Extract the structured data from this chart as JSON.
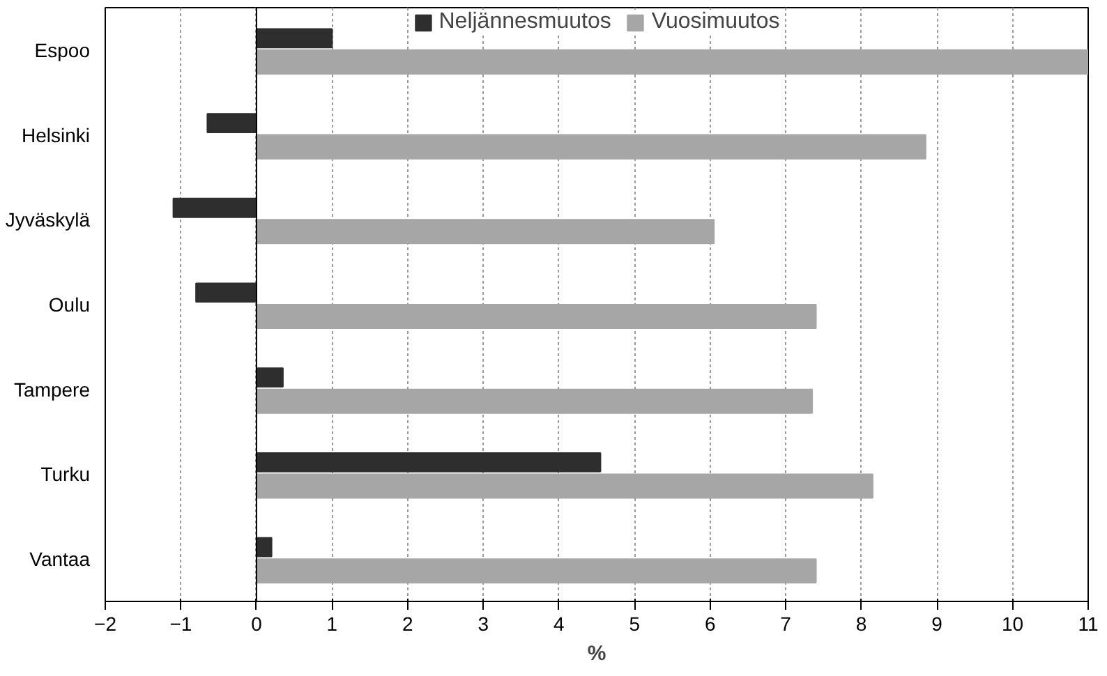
{
  "chart_data": {
    "type": "bar",
    "orientation": "horizontal",
    "xlabel": "%",
    "categories": [
      "Espoo",
      "Helsinki",
      "Jyväskylä",
      "Oulu",
      "Tampere",
      "Turku",
      "Vantaa"
    ],
    "series": [
      {
        "name": "Neljännesmuutos",
        "color": "#2e2e2e",
        "values": [
          1.0,
          -0.65,
          -1.1,
          -0.8,
          0.35,
          4.55,
          0.2
        ]
      },
      {
        "name": "Vuosimuutos",
        "color": "#a6a6a6",
        "values": [
          11.0,
          8.85,
          6.05,
          7.4,
          7.35,
          8.15,
          7.4
        ]
      }
    ],
    "xlim": [
      -2,
      11
    ],
    "xticks": [
      -2,
      -1,
      0,
      1,
      2,
      3,
      4,
      5,
      6,
      7,
      8,
      9,
      10,
      11
    ],
    "grid": "x",
    "legend": "top"
  }
}
